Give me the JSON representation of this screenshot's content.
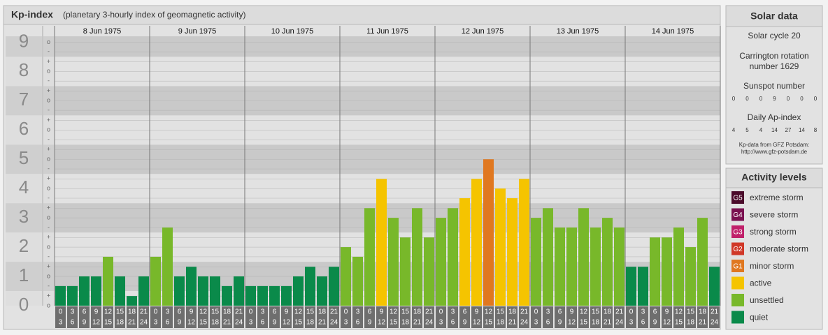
{
  "chart_data": {
    "type": "bar",
    "title": "Kp-index",
    "subtitle": "(planetary 3-hourly index of geomagnetic activity)",
    "days": [
      "8 Jun 1975",
      "9 Jun 1975",
      "10 Jun 1975",
      "11 Jun 1975",
      "12 Jun 1975",
      "13 Jun 1975",
      "14 Jun 1975"
    ],
    "hours": [
      [
        "0",
        "3"
      ],
      [
        "3",
        "6"
      ],
      [
        "6",
        "9"
      ],
      [
        "9",
        "12"
      ],
      [
        "12",
        "15"
      ],
      [
        "15",
        "18"
      ],
      [
        "18",
        "21"
      ],
      [
        "21",
        "24"
      ]
    ],
    "values": [
      0.67,
      0.67,
      1,
      1,
      1.67,
      1,
      0.33,
      1,
      1.67,
      2.67,
      1,
      1.33,
      1,
      1,
      0.67,
      1,
      0.67,
      0.67,
      0.67,
      0.67,
      1,
      1.33,
      1,
      1.33,
      2,
      1.67,
      3.33,
      4.33,
      3,
      2.33,
      3.33,
      2.33,
      3,
      3.33,
      3.67,
      4.33,
      5,
      4,
      3.67,
      4.33,
      3,
      3.33,
      2.67,
      2.67,
      3.33,
      2.67,
      3,
      2.67,
      1.33,
      1.33,
      2.33,
      2.33,
      2.67,
      2,
      3,
      1.33
    ],
    "colors": [
      "#0a8a4a",
      "#0a8a4a",
      "#0a8a4a",
      "#0a8a4a",
      "#78b82a",
      "#0a8a4a",
      "#0a8a4a",
      "#0a8a4a",
      "#78b82a",
      "#78b82a",
      "#0a8a4a",
      "#0a8a4a",
      "#0a8a4a",
      "#0a8a4a",
      "#0a8a4a",
      "#0a8a4a",
      "#0a8a4a",
      "#0a8a4a",
      "#0a8a4a",
      "#0a8a4a",
      "#0a8a4a",
      "#0a8a4a",
      "#0a8a4a",
      "#0a8a4a",
      "#78b82a",
      "#78b82a",
      "#78b82a",
      "#f5c400",
      "#78b82a",
      "#78b82a",
      "#78b82a",
      "#78b82a",
      "#78b82a",
      "#78b82a",
      "#f5c400",
      "#f5c400",
      "#e07820",
      "#f5c400",
      "#f5c400",
      "#f5c400",
      "#78b82a",
      "#78b82a",
      "#78b82a",
      "#78b82a",
      "#78b82a",
      "#78b82a",
      "#78b82a",
      "#78b82a",
      "#0a8a4a",
      "#0a8a4a",
      "#78b82a",
      "#78b82a",
      "#78b82a",
      "#78b82a",
      "#78b82a",
      "#0a8a4a"
    ],
    "ylim": [
      0,
      9.2
    ],
    "yticks": [
      0,
      1,
      2,
      3,
      4,
      5,
      6,
      7,
      8,
      9
    ],
    "minor_ticks": [
      {
        "value": 0,
        "label": "o"
      },
      {
        "value": 0.33,
        "label": "+"
      },
      {
        "value": 0.67,
        "label": "-"
      },
      {
        "value": 1,
        "label": "o"
      },
      {
        "value": 1.33,
        "label": "+"
      },
      {
        "value": 1.67,
        "label": "-"
      },
      {
        "value": 2,
        "label": "o"
      },
      {
        "value": 2.33,
        "label": "+"
      },
      {
        "value": 2.67,
        "label": "-"
      },
      {
        "value": 3,
        "label": "o"
      },
      {
        "value": 3.33,
        "label": "+"
      },
      {
        "value": 3.67,
        "label": "-"
      },
      {
        "value": 4,
        "label": "o"
      },
      {
        "value": 4.33,
        "label": "+"
      },
      {
        "value": 4.67,
        "label": "-"
      },
      {
        "value": 5,
        "label": "o"
      },
      {
        "value": 5.33,
        "label": "+"
      },
      {
        "value": 5.67,
        "label": "-"
      },
      {
        "value": 6,
        "label": "o"
      },
      {
        "value": 6.33,
        "label": "+"
      },
      {
        "value": 6.67,
        "label": "-"
      },
      {
        "value": 7,
        "label": "o"
      },
      {
        "value": 7.33,
        "label": "+"
      },
      {
        "value": 7.67,
        "label": "-"
      },
      {
        "value": 8,
        "label": "o"
      },
      {
        "value": 8.33,
        "label": "+"
      },
      {
        "value": 8.67,
        "label": "-"
      },
      {
        "value": 9,
        "label": "o"
      }
    ],
    "grid": true
  },
  "solar_data": {
    "title": "Solar data",
    "solar_cycle": "Solar cycle 20",
    "carrington": [
      "Carrington rotation",
      "number 1629"
    ],
    "sunspot_title": "Sunspot number",
    "sunspots": [
      0,
      0,
      0,
      9,
      0,
      0,
      0
    ],
    "ap_title": "Daily Ap-index",
    "ap": [
      4,
      5,
      4,
      14,
      27,
      14,
      8
    ],
    "source": [
      "Kp-data from GFZ Potsdam:",
      "http://www.gfz-potsdam.de"
    ]
  },
  "activity_levels": {
    "title": "Activity levels",
    "items": [
      {
        "badge": "G5",
        "label": "extreme storm",
        "color": "#4a0a2a"
      },
      {
        "badge": "G4",
        "label": "severe storm",
        "color": "#7a1050"
      },
      {
        "badge": "G3",
        "label": "strong storm",
        "color": "#c0206a"
      },
      {
        "badge": "G2",
        "label": "moderate storm",
        "color": "#d03828"
      },
      {
        "badge": "G1",
        "label": "minor storm",
        "color": "#e07820"
      },
      {
        "label": "active",
        "color": "#f5c400"
      },
      {
        "label": "unsettled",
        "color": "#78b82a"
      },
      {
        "label": "quiet",
        "color": "#0a8a4a"
      }
    ]
  }
}
